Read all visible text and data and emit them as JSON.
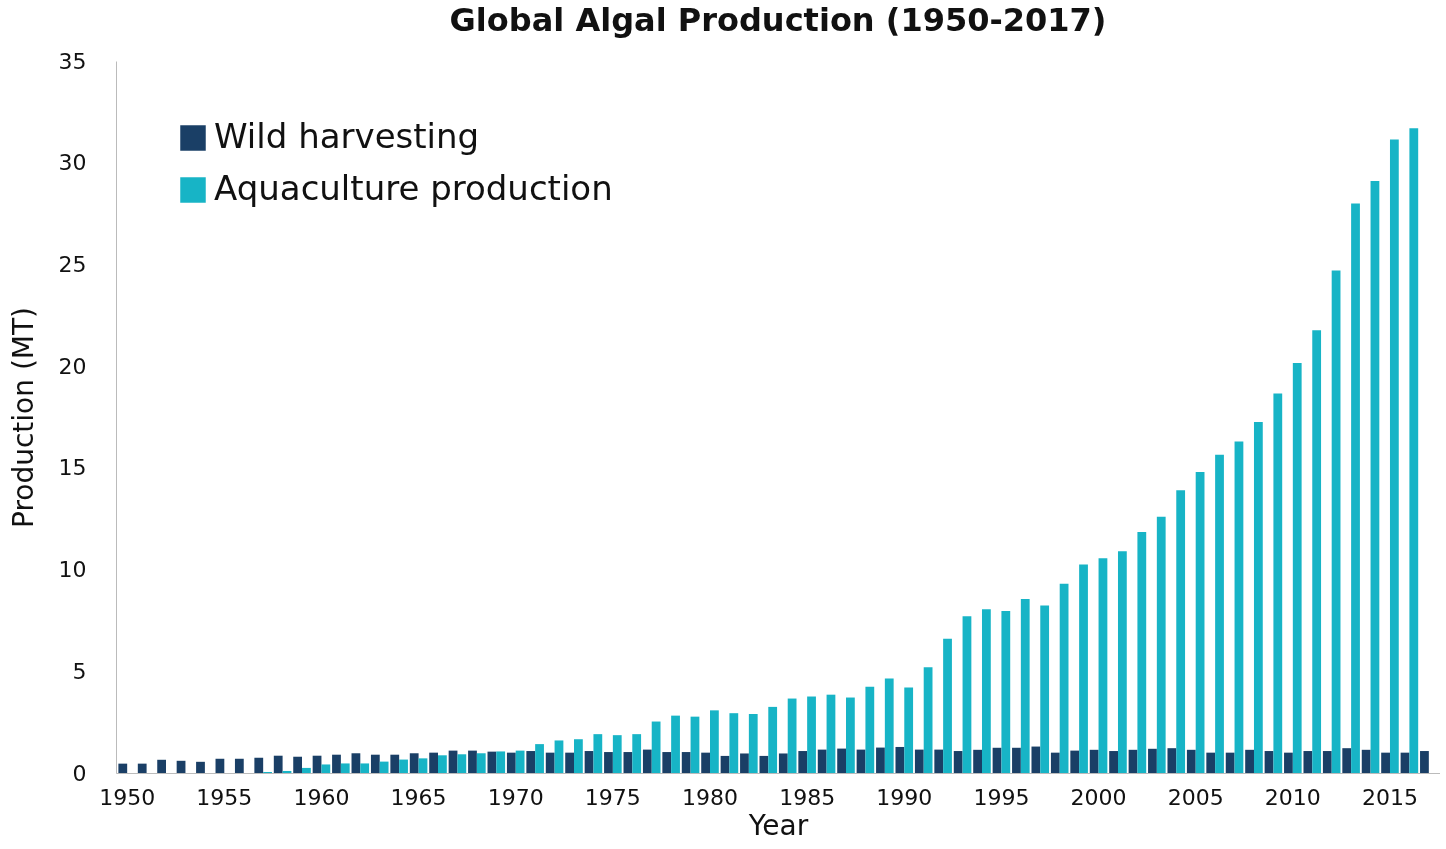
{
  "chart_data": {
    "type": "bar",
    "title": "Global Algal Production (1950-2017)",
    "xlabel": "Year",
    "ylabel": "Production (MT)",
    "categories": [
      "1950",
      null,
      null,
      null,
      null,
      "1955",
      null,
      null,
      null,
      null,
      "1960",
      null,
      null,
      null,
      null,
      "1965",
      null,
      null,
      null,
      null,
      "1970",
      null,
      null,
      null,
      null,
      "1975",
      null,
      null,
      null,
      null,
      "1980",
      null,
      null,
      null,
      null,
      "1985",
      null,
      null,
      null,
      null,
      "1990",
      null,
      null,
      null,
      null,
      "1995",
      null,
      null,
      null,
      null,
      "2000",
      null,
      null,
      null,
      null,
      "2005",
      null,
      null,
      null,
      null,
      "2010",
      null,
      null,
      null,
      null,
      "2015",
      null,
      null
    ],
    "series": [
      {
        "name": "Wild harvesting",
        "color": "#1a3f66",
        "values": [
          0.46,
          0.46,
          0.65,
          0.6,
          0.55,
          0.7,
          0.7,
          0.75,
          0.85,
          0.8,
          0.85,
          0.9,
          0.97,
          0.9,
          0.9,
          0.97,
          1.0,
          1.1,
          1.1,
          1.05,
          1.0,
          1.08,
          1.0,
          1.0,
          1.08,
          1.03,
          1.03,
          1.15,
          1.03,
          1.03,
          1.0,
          0.84,
          0.96,
          0.84,
          0.96,
          1.08,
          1.15,
          1.2,
          1.15,
          1.25,
          1.28,
          1.15,
          1.15,
          1.08,
          1.14,
          1.24,
          1.24,
          1.3,
          1.0,
          1.1,
          1.14,
          1.08,
          1.14,
          1.19,
          1.22,
          1.14,
          1.0,
          1.0,
          1.14,
          1.08,
          1.0,
          1.08,
          1.08,
          1.22,
          1.14,
          1.0,
          1.0,
          1.08
        ]
      },
      {
        "name": "Aquaculture production",
        "color": "#17b4c6",
        "values": [
          0,
          0,
          0,
          0,
          0,
          0,
          0,
          0.05,
          0.1,
          0.25,
          0.42,
          0.47,
          0.47,
          0.56,
          0.66,
          0.72,
          0.87,
          0.92,
          0.97,
          1.06,
          1.1,
          1.42,
          1.6,
          1.66,
          1.91,
          1.86,
          1.91,
          2.53,
          2.82,
          2.77,
          3.08,
          2.94,
          2.9,
          3.25,
          3.66,
          3.76,
          3.85,
          3.71,
          4.24,
          4.65,
          4.2,
          5.2,
          6.6,
          7.7,
          8.05,
          7.96,
          8.55,
          8.23,
          9.3,
          10.25,
          10.56,
          10.9,
          11.85,
          12.6,
          13.9,
          14.8,
          15.65,
          16.3,
          17.25,
          18.65,
          20.16,
          21.77,
          24.7,
          28.0,
          29.1,
          31.14,
          31.7,
          null
        ]
      }
    ],
    "ylim": [
      0,
      35
    ],
    "yticks": [
      0,
      5,
      10,
      15,
      20,
      25,
      30,
      35
    ],
    "grid": false,
    "legend": "top left"
  }
}
